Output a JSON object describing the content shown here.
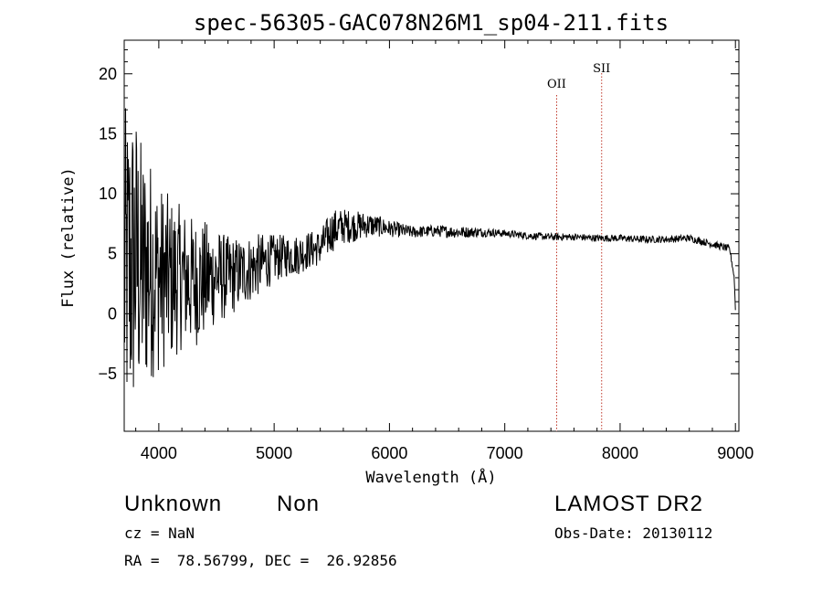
{
  "chart_data": {
    "type": "line",
    "title": "spec-56305-GAC078N26M1_sp04-211.fits",
    "xlabel": "Wavelength (Å)",
    "ylabel": "Flux (relative)",
    "xlim": [
      3700,
      9030
    ],
    "ylim": [
      -9.8,
      22.8
    ],
    "x_ticks": [
      "4000",
      "5000",
      "6000",
      "7000",
      "8000",
      "9000"
    ],
    "y_ticks": [
      "−5",
      "0",
      "5",
      "10",
      "15",
      "20"
    ],
    "x_tick_values": [
      4000,
      5000,
      6000,
      7000,
      8000,
      9000
    ],
    "y_tick_values": [
      -5,
      0,
      5,
      10,
      15,
      20
    ],
    "series": [
      {
        "color": "#000000",
        "x": [
          3700,
          3750,
          3800,
          3850,
          3900,
          3950,
          4000,
          4100,
          4200,
          4300,
          4400,
          4500,
          4600,
          4700,
          4800,
          4900,
          5000,
          5100,
          5200,
          5300,
          5400,
          5500,
          5600,
          5700,
          5800,
          5900,
          6000,
          6200,
          6400,
          6600,
          6800,
          7000,
          7200,
          7400,
          7600,
          7800,
          8000,
          8200,
          8400,
          8600,
          8800,
          8950,
          8990,
          9000
        ],
        "y": [
          3.0,
          4.0,
          4.5,
          3.5,
          3.8,
          3.6,
          3.0,
          2.8,
          3.0,
          2.6,
          2.8,
          3.2,
          3.0,
          3.4,
          3.8,
          4.2,
          4.6,
          4.8,
          4.9,
          5.3,
          5.5,
          6.9,
          7.3,
          7.3,
          7.4,
          7.3,
          7.1,
          6.8,
          6.9,
          6.8,
          6.8,
          6.7,
          6.5,
          6.4,
          6.4,
          6.3,
          6.3,
          6.2,
          6.2,
          6.3,
          5.8,
          5.4,
          3.0,
          0.3
        ],
        "noise_amplitude": [
          14,
          14,
          13,
          11,
          10,
          9,
          8,
          7,
          6,
          5.5,
          5,
          4,
          3.5,
          3,
          2.8,
          2.5,
          2,
          1.8,
          1.7,
          1.6,
          1.5,
          1.8,
          1.5,
          1.3,
          1.1,
          0.9,
          0.7,
          0.5,
          0.5,
          0.5,
          0.4,
          0.3,
          0.3,
          0.3,
          0.3,
          0.3,
          0.3,
          0.3,
          0.3,
          0.3,
          0.3,
          0.3,
          0.2,
          0
        ]
      }
    ],
    "lines": [
      {
        "label": "OII",
        "x": 7450,
        "color": "#c0392b"
      },
      {
        "label": "SII",
        "x": 7840,
        "color": "#c0392b"
      }
    ],
    "grid": false
  },
  "info": {
    "class": "Unknown",
    "subclass": "Non",
    "cz": "cz = NaN",
    "coords": "RA =  78.56799, DEC =  26.92856",
    "survey": "LAMOST DR2",
    "obs_date": "Obs-Date: 20130112"
  }
}
